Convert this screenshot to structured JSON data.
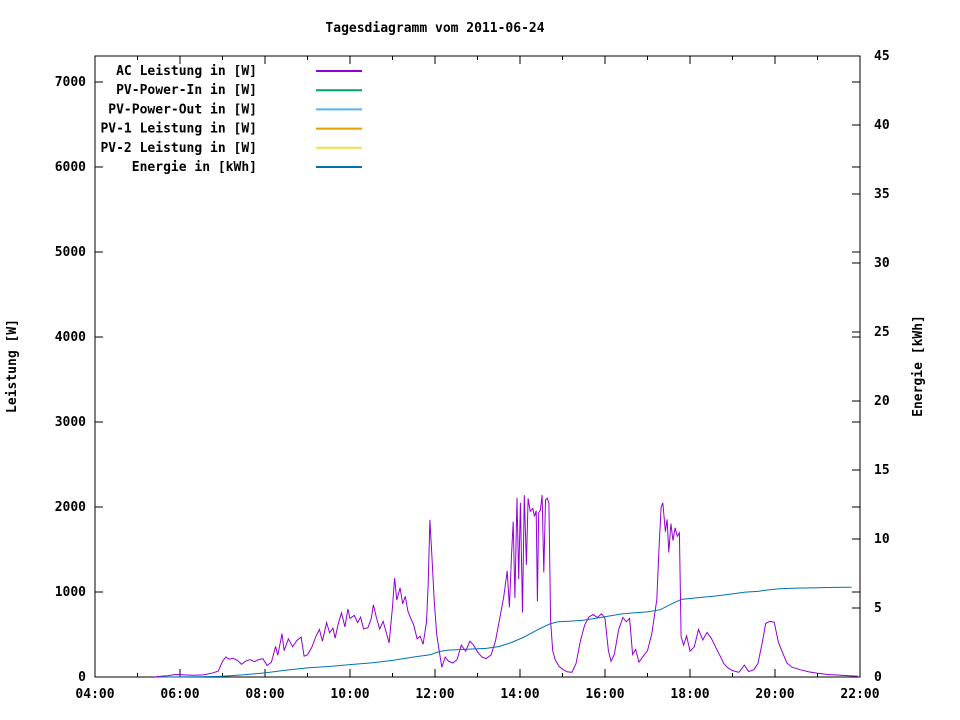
{
  "title": "Tagesdiagramm vom 2011-06-24",
  "axes": {
    "left_label": "Leistung [W]",
    "right_label": "Energie [kWh]",
    "x_ticks": [
      {
        "hour": 4,
        "label": "04:00"
      },
      {
        "hour": 6,
        "label": "06:00"
      },
      {
        "hour": 8,
        "label": "08:00"
      },
      {
        "hour": 10,
        "label": "10:00"
      },
      {
        "hour": 12,
        "label": "12:00"
      },
      {
        "hour": 14,
        "label": "14:00"
      },
      {
        "hour": 16,
        "label": "16:00"
      },
      {
        "hour": 18,
        "label": "18:00"
      },
      {
        "hour": 20,
        "label": "20:00"
      },
      {
        "hour": 22,
        "label": "22:00"
      }
    ],
    "x_minor_hours": [
      5,
      7,
      9,
      11,
      13,
      15,
      17,
      19,
      21
    ],
    "left_ticks": [
      {
        "value": 0,
        "label": "0"
      },
      {
        "value": 1000,
        "label": "1000"
      },
      {
        "value": 2000,
        "label": "2000"
      },
      {
        "value": 3000,
        "label": "3000"
      },
      {
        "value": 4000,
        "label": "4000"
      },
      {
        "value": 5000,
        "label": "5000"
      },
      {
        "value": 6000,
        "label": "6000"
      },
      {
        "value": 7000,
        "label": "7000"
      }
    ],
    "right_ticks": [
      {
        "value": 0,
        "label": "0"
      },
      {
        "value": 5,
        "label": "5"
      },
      {
        "value": 10,
        "label": "10"
      },
      {
        "value": 15,
        "label": "15"
      },
      {
        "value": 20,
        "label": "20"
      },
      {
        "value": 25,
        "label": "25"
      },
      {
        "value": 30,
        "label": "30"
      },
      {
        "value": 35,
        "label": "35"
      },
      {
        "value": 40,
        "label": "40"
      },
      {
        "value": 45,
        "label": "45"
      }
    ]
  },
  "legend": [
    {
      "label": "AC Leistung in [W]",
      "color": "#9400d3"
    },
    {
      "label": "PV-Power-In in [W]",
      "color": "#009e73"
    },
    {
      "label": "PV-Power-Out in [W]",
      "color": "#56b4e9"
    },
    {
      "label": "PV-1 Leistung in [W]",
      "color": "#e69f00"
    },
    {
      "label": "PV-2 Leistung in [W]",
      "color": "#f0e442"
    },
    {
      "label": "Energie in [kWh]",
      "color": "#0072b2"
    }
  ],
  "chart_data": {
    "type": "line",
    "x_unit": "hours",
    "x_range": [
      4,
      22
    ],
    "y1_label": "Leistung [W]",
    "y1_range": [
      0,
      7306
    ],
    "y2_label": "Energie [kWh]",
    "y2_range": [
      0,
      45
    ],
    "grid": false,
    "legend_position": "top-left-inside",
    "series": [
      {
        "name": "AC Leistung in [W]",
        "axis": "y1",
        "color": "#9400d3",
        "points": [
          [
            5.4,
            0
          ],
          [
            5.55,
            8
          ],
          [
            5.7,
            15
          ],
          [
            5.9,
            30
          ],
          [
            6.1,
            25
          ],
          [
            6.3,
            20
          ],
          [
            6.55,
            25
          ],
          [
            6.75,
            45
          ],
          [
            6.9,
            70
          ],
          [
            7.0,
            185
          ],
          [
            7.08,
            235
          ],
          [
            7.15,
            210
          ],
          [
            7.25,
            220
          ],
          [
            7.35,
            195
          ],
          [
            7.45,
            150
          ],
          [
            7.55,
            190
          ],
          [
            7.65,
            205
          ],
          [
            7.75,
            180
          ],
          [
            7.85,
            205
          ],
          [
            7.95,
            215
          ],
          [
            8.05,
            135
          ],
          [
            8.15,
            175
          ],
          [
            8.25,
            360
          ],
          [
            8.3,
            255
          ],
          [
            8.4,
            510
          ],
          [
            8.45,
            310
          ],
          [
            8.55,
            450
          ],
          [
            8.65,
            355
          ],
          [
            8.75,
            430
          ],
          [
            8.85,
            470
          ],
          [
            8.92,
            245
          ],
          [
            9.0,
            260
          ],
          [
            9.1,
            350
          ],
          [
            9.2,
            480
          ],
          [
            9.28,
            560
          ],
          [
            9.35,
            420
          ],
          [
            9.45,
            640
          ],
          [
            9.52,
            520
          ],
          [
            9.6,
            575
          ],
          [
            9.65,
            455
          ],
          [
            9.72,
            620
          ],
          [
            9.8,
            755
          ],
          [
            9.88,
            590
          ],
          [
            9.95,
            800
          ],
          [
            10.0,
            690
          ],
          [
            10.1,
            725
          ],
          [
            10.18,
            640
          ],
          [
            10.25,
            705
          ],
          [
            10.32,
            565
          ],
          [
            10.42,
            580
          ],
          [
            10.5,
            690
          ],
          [
            10.55,
            850
          ],
          [
            10.62,
            705
          ],
          [
            10.7,
            565
          ],
          [
            10.78,
            655
          ],
          [
            10.85,
            530
          ],
          [
            10.92,
            400
          ],
          [
            11.0,
            825
          ],
          [
            11.05,
            1165
          ],
          [
            11.1,
            905
          ],
          [
            11.18,
            1050
          ],
          [
            11.24,
            860
          ],
          [
            11.3,
            950
          ],
          [
            11.36,
            780
          ],
          [
            11.42,
            700
          ],
          [
            11.5,
            610
          ],
          [
            11.58,
            450
          ],
          [
            11.65,
            480
          ],
          [
            11.72,
            385
          ],
          [
            11.8,
            650
          ],
          [
            11.84,
            1100
          ],
          [
            11.88,
            1850
          ],
          [
            11.93,
            1400
          ],
          [
            11.98,
            900
          ],
          [
            12.04,
            500
          ],
          [
            12.1,
            300
          ],
          [
            12.16,
            115
          ],
          [
            12.24,
            235
          ],
          [
            12.32,
            185
          ],
          [
            12.42,
            165
          ],
          [
            12.52,
            205
          ],
          [
            12.62,
            375
          ],
          [
            12.72,
            305
          ],
          [
            12.82,
            420
          ],
          [
            12.9,
            380
          ],
          [
            13.0,
            295
          ],
          [
            13.1,
            235
          ],
          [
            13.2,
            215
          ],
          [
            13.32,
            260
          ],
          [
            13.42,
            420
          ],
          [
            13.52,
            680
          ],
          [
            13.62,
            950
          ],
          [
            13.7,
            1250
          ],
          [
            13.75,
            820
          ],
          [
            13.8,
            1430
          ],
          [
            13.84,
            1830
          ],
          [
            13.88,
            930
          ],
          [
            13.93,
            2110
          ],
          [
            13.97,
            1150
          ],
          [
            14.01,
            2050
          ],
          [
            14.06,
            760
          ],
          [
            14.1,
            2140
          ],
          [
            14.15,
            1320
          ],
          [
            14.19,
            2100
          ],
          [
            14.24,
            1950
          ],
          [
            14.3,
            1985
          ],
          [
            14.34,
            1890
          ],
          [
            14.38,
            1955
          ],
          [
            14.41,
            890
          ],
          [
            14.44,
            1935
          ],
          [
            14.48,
            1965
          ],
          [
            14.52,
            2140
          ],
          [
            14.56,
            1230
          ],
          [
            14.6,
            2080
          ],
          [
            14.64,
            2105
          ],
          [
            14.68,
            2050
          ],
          [
            14.72,
            660
          ],
          [
            14.77,
            310
          ],
          [
            14.83,
            200
          ],
          [
            14.92,
            125
          ],
          [
            15.02,
            85
          ],
          [
            15.12,
            60
          ],
          [
            15.22,
            55
          ],
          [
            15.32,
            160
          ],
          [
            15.42,
            420
          ],
          [
            15.52,
            610
          ],
          [
            15.62,
            705
          ],
          [
            15.72,
            735
          ],
          [
            15.82,
            700
          ],
          [
            15.92,
            745
          ],
          [
            16.0,
            690
          ],
          [
            16.08,
            310
          ],
          [
            16.14,
            185
          ],
          [
            16.22,
            265
          ],
          [
            16.32,
            555
          ],
          [
            16.42,
            700
          ],
          [
            16.5,
            650
          ],
          [
            16.58,
            690
          ],
          [
            16.65,
            265
          ],
          [
            16.72,
            325
          ],
          [
            16.8,
            175
          ],
          [
            16.9,
            245
          ],
          [
            17.0,
            310
          ],
          [
            17.1,
            510
          ],
          [
            17.16,
            710
          ],
          [
            17.22,
            910
          ],
          [
            17.27,
            1510
          ],
          [
            17.32,
            1995
          ],
          [
            17.36,
            2050
          ],
          [
            17.42,
            1710
          ],
          [
            17.46,
            1855
          ],
          [
            17.5,
            1465
          ],
          [
            17.55,
            1805
          ],
          [
            17.6,
            1605
          ],
          [
            17.65,
            1755
          ],
          [
            17.7,
            1655
          ],
          [
            17.75,
            1695
          ],
          [
            17.79,
            475
          ],
          [
            17.85,
            375
          ],
          [
            17.92,
            485
          ],
          [
            18.0,
            305
          ],
          [
            18.1,
            355
          ],
          [
            18.2,
            560
          ],
          [
            18.3,
            435
          ],
          [
            18.4,
            525
          ],
          [
            18.5,
            455
          ],
          [
            18.6,
            355
          ],
          [
            18.7,
            255
          ],
          [
            18.8,
            155
          ],
          [
            18.9,
            105
          ],
          [
            19.0,
            75
          ],
          [
            19.15,
            55
          ],
          [
            19.28,
            140
          ],
          [
            19.38,
            65
          ],
          [
            19.5,
            85
          ],
          [
            19.6,
            160
          ],
          [
            19.7,
            410
          ],
          [
            19.78,
            630
          ],
          [
            19.88,
            655
          ],
          [
            19.98,
            645
          ],
          [
            20.08,
            410
          ],
          [
            20.18,
            285
          ],
          [
            20.28,
            165
          ],
          [
            20.4,
            115
          ],
          [
            20.6,
            85
          ],
          [
            20.8,
            60
          ],
          [
            21.0,
            45
          ],
          [
            21.25,
            30
          ],
          [
            21.5,
            22
          ],
          [
            21.75,
            15
          ],
          [
            21.95,
            10
          ]
        ]
      },
      {
        "name": "PV-Power-In in [W]",
        "axis": "y1",
        "color": "#009e73",
        "points": []
      },
      {
        "name": "PV-Power-Out in [W]",
        "axis": "y1",
        "color": "#56b4e9",
        "points": []
      },
      {
        "name": "PV-1 Leistung in [W]",
        "axis": "y1",
        "color": "#e69f00",
        "points": []
      },
      {
        "name": "PV-2 Leistung in [W]",
        "axis": "y1",
        "color": "#f0e442",
        "points": []
      },
      {
        "name": "Energie in [kWh]",
        "axis": "y2",
        "color": "#0072b2",
        "points": [
          [
            5.5,
            0
          ],
          [
            6.5,
            0.02
          ],
          [
            7.0,
            0.06
          ],
          [
            7.5,
            0.16
          ],
          [
            8.0,
            0.3
          ],
          [
            8.5,
            0.5
          ],
          [
            9.0,
            0.66
          ],
          [
            9.5,
            0.76
          ],
          [
            10.0,
            0.9
          ],
          [
            10.5,
            1.02
          ],
          [
            11.0,
            1.2
          ],
          [
            11.5,
            1.45
          ],
          [
            11.9,
            1.62
          ],
          [
            12.1,
            1.85
          ],
          [
            12.3,
            1.95
          ],
          [
            12.7,
            2.0
          ],
          [
            13.2,
            2.07
          ],
          [
            13.5,
            2.2
          ],
          [
            13.8,
            2.5
          ],
          [
            14.1,
            2.9
          ],
          [
            14.4,
            3.4
          ],
          [
            14.7,
            3.85
          ],
          [
            14.9,
            4.0
          ],
          [
            15.2,
            4.05
          ],
          [
            15.5,
            4.12
          ],
          [
            15.8,
            4.27
          ],
          [
            16.1,
            4.42
          ],
          [
            16.4,
            4.57
          ],
          [
            16.7,
            4.65
          ],
          [
            17.0,
            4.72
          ],
          [
            17.3,
            4.88
          ],
          [
            17.6,
            5.35
          ],
          [
            17.8,
            5.62
          ],
          [
            18.2,
            5.75
          ],
          [
            18.6,
            5.87
          ],
          [
            19.0,
            6.02
          ],
          [
            19.3,
            6.15
          ],
          [
            19.6,
            6.2
          ],
          [
            19.8,
            6.3
          ],
          [
            20.1,
            6.4
          ],
          [
            20.5,
            6.44
          ],
          [
            21.0,
            6.47
          ],
          [
            21.4,
            6.49
          ],
          [
            21.8,
            6.5
          ]
        ]
      }
    ]
  }
}
